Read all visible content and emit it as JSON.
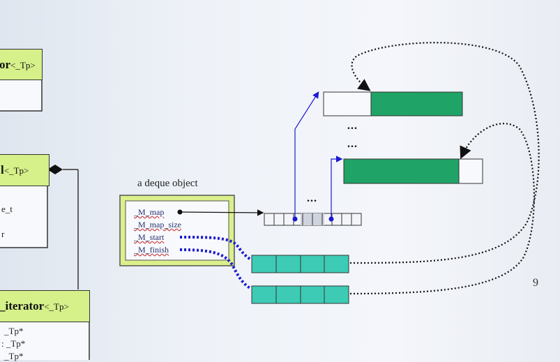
{
  "uml": {
    "box1": {
      "name": "or",
      "tp": "<_Tp>"
    },
    "box2": {
      "name": "l",
      "tp": "<_Tp>",
      "members": [
        "e_t",
        "r"
      ]
    },
    "box3": {
      "name": "_iterator",
      "tp": "<_Tp>",
      "members": [
        "_Tp*",
        ": _Tp*",
        "_Tp*"
      ]
    }
  },
  "deque": {
    "label": "a deque object",
    "fields": [
      "_M_map",
      "_M_map_size",
      "_M_start",
      "_M_finish"
    ]
  },
  "ellipsis": [
    "...",
    "...",
    "..."
  ],
  "page_number": "9",
  "colors": {
    "buffer_green": "#1fa366",
    "buffer_teal": "#3dcbb6",
    "head_green": "#d6f08a",
    "pointer_blue": "#1a1ad0"
  }
}
